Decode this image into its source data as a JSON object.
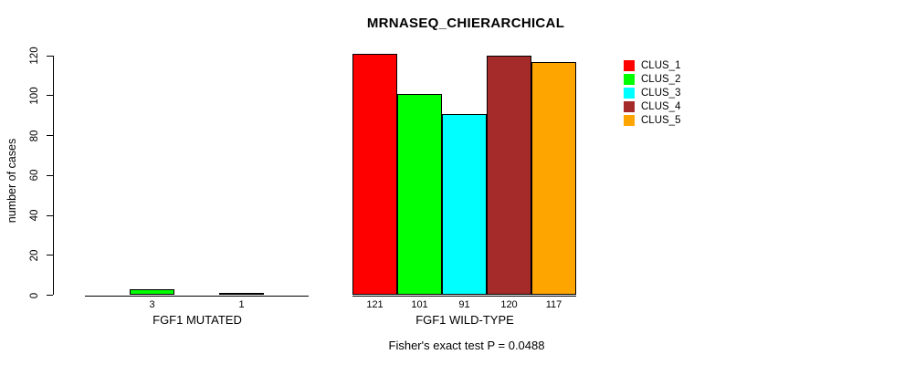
{
  "chart_data": {
    "type": "bar",
    "title": "MRNASEQ_CHIERARCHICAL",
    "ylabel": "number of cases",
    "xlabel": "",
    "ylim": [
      0,
      120
    ],
    "yticks": [
      0,
      20,
      40,
      60,
      80,
      100,
      120
    ],
    "grid": false,
    "legend_position": "right-outside",
    "bar_border_color": "#000000",
    "series": [
      {
        "name": "CLUS_1",
        "color": "#FF0000"
      },
      {
        "name": "CLUS_2",
        "color": "#00FF00"
      },
      {
        "name": "CLUS_3",
        "color": "#00FFFF"
      },
      {
        "name": "CLUS_4",
        "color": "#A52A2A"
      },
      {
        "name": "CLUS_5",
        "color": "#FFA500"
      }
    ],
    "groups": [
      {
        "label": "FGF1 MUTATED",
        "values": [
          0,
          3,
          0,
          1,
          0
        ]
      },
      {
        "label": "FGF1 WILD-TYPE",
        "values": [
          121,
          101,
          91,
          120,
          117
        ]
      }
    ],
    "bar_value_labels_visible_only_for_nonzero": true,
    "annotation": "Fisher's exact test P = 0.0488"
  }
}
